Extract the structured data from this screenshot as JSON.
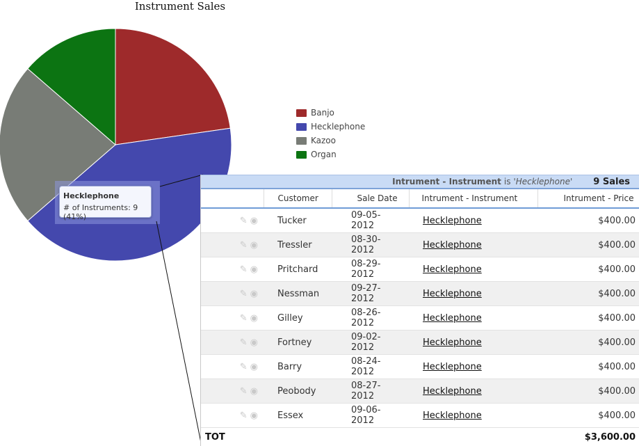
{
  "chart_data": {
    "type": "pie",
    "title": "Instrument Sales",
    "slices": [
      {
        "label": "Banjo",
        "value": 5,
        "color": "#9e2a2b"
      },
      {
        "label": "Hecklephone",
        "value": 9,
        "color": "#4448ad"
      },
      {
        "label": "Kazoo",
        "value": 5,
        "color": "#787c76"
      },
      {
        "label": "Organ",
        "value": 3,
        "color": "#0c7412"
      }
    ],
    "legend_position": "right",
    "tooltip": {
      "title": "Hecklephone",
      "text": "# of Instruments: 9 (41%)"
    }
  },
  "report": {
    "group_field": "Intrument - Instrument",
    "group_is": "is",
    "group_value": "'Hecklephone'",
    "group_count": "9 Sales",
    "columns": [
      "Customer",
      "Sale Date",
      "Intrument - Instrument",
      "Intrument - Price"
    ],
    "rows": [
      [
        "Tucker",
        "09-05-2012",
        "Hecklephone",
        "$400.00"
      ],
      [
        "Tressler",
        "08-30-2012",
        "Hecklephone",
        "$400.00"
      ],
      [
        "Pritchard",
        "08-29-2012",
        "Hecklephone",
        "$400.00"
      ],
      [
        "Nessman",
        "09-27-2012",
        "Hecklephone",
        "$400.00"
      ],
      [
        "Gilley",
        "08-26-2012",
        "Hecklephone",
        "$400.00"
      ],
      [
        "Fortney",
        "09-02-2012",
        "Hecklephone",
        "$400.00"
      ],
      [
        "Barry",
        "08-24-2012",
        "Hecklephone",
        "$400.00"
      ],
      [
        "Peobody",
        "08-27-2012",
        "Hecklephone",
        "$400.00"
      ],
      [
        "Essex",
        "09-06-2012",
        "Hecklephone",
        "$400.00"
      ]
    ],
    "total_label": "TOT",
    "total_value": "$3,600.00"
  },
  "icons": {
    "edit": "pencil-icon",
    "view": "eye-icon"
  }
}
